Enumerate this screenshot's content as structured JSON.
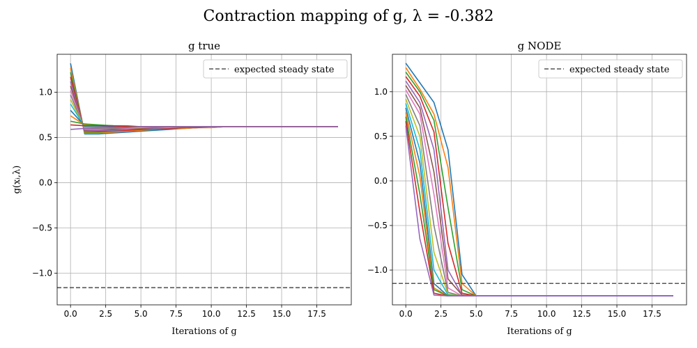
{
  "figure": {
    "suptitle": "Contraction mapping of g, λ = -0.382"
  },
  "chart_data": [
    {
      "type": "line",
      "title": "g true",
      "xlabel": "Iterations of g",
      "ylabel": "g(xᵢ,λ)",
      "xlim": [
        -0.95,
        19.95
      ],
      "ylim": [
        -1.35,
        1.42
      ],
      "xticks": [
        0,
        2.5,
        5,
        7.5,
        10,
        12.5,
        15,
        17.5
      ],
      "xtick_labels": [
        "0.0",
        "2.5",
        "5.0",
        "7.5",
        "10.0",
        "12.5",
        "15.0",
        "17.5"
      ],
      "yticks": [
        -1.0,
        -0.5,
        0.0,
        0.5,
        1.0
      ],
      "ytick_labels": [
        "−1.0",
        "−0.5",
        "0.0",
        "0.5",
        "1.0"
      ],
      "grid": true,
      "legend": {
        "placement": "top-right",
        "entries": [
          "expected steady state"
        ]
      },
      "reference_line": {
        "y": -1.16,
        "style": "dashed",
        "color": "#555555"
      },
      "x": [
        0,
        1,
        2,
        3,
        4,
        5,
        6,
        7,
        8,
        9,
        10,
        11,
        12,
        13,
        14,
        15,
        16,
        17,
        18,
        19
      ],
      "series": [
        {
          "color": "#1f77b4",
          "values": [
            1.32,
            0.54,
            0.54,
            0.55,
            0.56,
            0.57,
            0.58,
            0.59,
            0.6,
            0.61,
            0.61,
            0.62,
            0.62,
            0.62,
            0.62,
            0.62,
            0.62,
            0.62,
            0.62,
            0.62
          ]
        },
        {
          "color": "#ff7f0e",
          "values": [
            1.27,
            0.55,
            0.55,
            0.56,
            0.57,
            0.58,
            0.59,
            0.6,
            0.6,
            0.61,
            0.61,
            0.62,
            0.62,
            0.62,
            0.62,
            0.62,
            0.62,
            0.62,
            0.62,
            0.62
          ]
        },
        {
          "color": "#2ca02c",
          "values": [
            1.22,
            0.56,
            0.56,
            0.57,
            0.58,
            0.59,
            0.59,
            0.6,
            0.61,
            0.61,
            0.62,
            0.62,
            0.62,
            0.62,
            0.62,
            0.62,
            0.62,
            0.62,
            0.62,
            0.62
          ]
        },
        {
          "color": "#d62728",
          "values": [
            1.17,
            0.57,
            0.57,
            0.58,
            0.58,
            0.59,
            0.6,
            0.6,
            0.61,
            0.61,
            0.62,
            0.62,
            0.62,
            0.62,
            0.62,
            0.62,
            0.62,
            0.62,
            0.62,
            0.62
          ]
        },
        {
          "color": "#9467bd",
          "values": [
            1.12,
            0.57,
            0.58,
            0.58,
            0.59,
            0.6,
            0.6,
            0.61,
            0.61,
            0.62,
            0.62,
            0.62,
            0.62,
            0.62,
            0.62,
            0.62,
            0.62,
            0.62,
            0.62,
            0.62
          ]
        },
        {
          "color": "#8c564b",
          "values": [
            1.07,
            0.58,
            0.59,
            0.59,
            0.6,
            0.6,
            0.61,
            0.61,
            0.61,
            0.62,
            0.62,
            0.62,
            0.62,
            0.62,
            0.62,
            0.62,
            0.62,
            0.62,
            0.62,
            0.62
          ]
        },
        {
          "color": "#e377c2",
          "values": [
            1.02,
            0.59,
            0.59,
            0.6,
            0.6,
            0.61,
            0.61,
            0.61,
            0.62,
            0.62,
            0.62,
            0.62,
            0.62,
            0.62,
            0.62,
            0.62,
            0.62,
            0.62,
            0.62,
            0.62
          ]
        },
        {
          "color": "#7f7f7f",
          "values": [
            0.97,
            0.6,
            0.6,
            0.6,
            0.61,
            0.61,
            0.61,
            0.62,
            0.62,
            0.62,
            0.62,
            0.62,
            0.62,
            0.62,
            0.62,
            0.62,
            0.62,
            0.62,
            0.62,
            0.62
          ]
        },
        {
          "color": "#bcbd22",
          "values": [
            0.92,
            0.61,
            0.61,
            0.61,
            0.61,
            0.61,
            0.62,
            0.62,
            0.62,
            0.62,
            0.62,
            0.62,
            0.62,
            0.62,
            0.62,
            0.62,
            0.62,
            0.62,
            0.62,
            0.62
          ]
        },
        {
          "color": "#17becf",
          "values": [
            0.87,
            0.62,
            0.62,
            0.62,
            0.62,
            0.62,
            0.62,
            0.62,
            0.62,
            0.62,
            0.62,
            0.62,
            0.62,
            0.62,
            0.62,
            0.62,
            0.62,
            0.62,
            0.62,
            0.62
          ]
        },
        {
          "color": "#1f77b4",
          "values": [
            0.8,
            0.63,
            0.63,
            0.62,
            0.62,
            0.62,
            0.62,
            0.62,
            0.62,
            0.62,
            0.62,
            0.62,
            0.62,
            0.62,
            0.62,
            0.62,
            0.62,
            0.62,
            0.62,
            0.62
          ]
        },
        {
          "color": "#ff7f0e",
          "values": [
            0.74,
            0.64,
            0.63,
            0.63,
            0.62,
            0.62,
            0.62,
            0.62,
            0.62,
            0.62,
            0.62,
            0.62,
            0.62,
            0.62,
            0.62,
            0.62,
            0.62,
            0.62,
            0.62,
            0.62
          ]
        },
        {
          "color": "#2ca02c",
          "values": [
            0.68,
            0.65,
            0.64,
            0.63,
            0.63,
            0.62,
            0.62,
            0.62,
            0.62,
            0.62,
            0.62,
            0.62,
            0.62,
            0.62,
            0.62,
            0.62,
            0.62,
            0.62,
            0.62,
            0.62
          ]
        },
        {
          "color": "#d62728",
          "values": [
            0.64,
            0.63,
            0.63,
            0.63,
            0.62,
            0.62,
            0.62,
            0.62,
            0.62,
            0.62,
            0.62,
            0.62,
            0.62,
            0.62,
            0.62,
            0.62,
            0.62,
            0.62,
            0.62,
            0.62
          ]
        },
        {
          "color": "#9467bd",
          "values": [
            0.59,
            0.6,
            0.61,
            0.61,
            0.61,
            0.62,
            0.62,
            0.62,
            0.62,
            0.62,
            0.62,
            0.62,
            0.62,
            0.62,
            0.62,
            0.62,
            0.62,
            0.62,
            0.62,
            0.62
          ]
        }
      ]
    },
    {
      "type": "line",
      "title": "g NODE",
      "xlabel": "Iterations of g",
      "ylabel": "",
      "xlim": [
        -0.95,
        19.95
      ],
      "ylim": [
        -1.39,
        1.42
      ],
      "xticks": [
        0,
        2.5,
        5,
        7.5,
        10,
        12.5,
        15,
        17.5
      ],
      "xtick_labels": [
        "0.0",
        "2.5",
        "5.0",
        "7.5",
        "10.0",
        "12.5",
        "15.0",
        "17.5"
      ],
      "yticks": [
        -1.0,
        -0.5,
        0.0,
        0.5,
        1.0
      ],
      "ytick_labels": [
        "−1.0",
        "−0.5",
        "0.0",
        "0.5",
        "1.0"
      ],
      "grid": true,
      "legend": {
        "placement": "top-right",
        "entries": [
          "expected steady state"
        ]
      },
      "reference_line": {
        "y": -1.15,
        "style": "dashed",
        "color": "#555555"
      },
      "x": [
        0,
        1,
        2,
        3,
        4,
        5,
        6,
        7,
        8,
        9,
        10,
        11,
        12,
        13,
        14,
        15,
        16,
        17,
        18,
        19
      ],
      "series": [
        {
          "color": "#1f77b4",
          "values": [
            1.32,
            1.1,
            0.88,
            0.35,
            -1.05,
            -1.29,
            -1.29,
            -1.29,
            -1.29,
            -1.29,
            -1.29,
            -1.29,
            -1.29,
            -1.29,
            -1.29,
            -1.29,
            -1.29,
            -1.29,
            -1.29,
            -1.29
          ]
        },
        {
          "color": "#ff7f0e",
          "values": [
            1.27,
            1.03,
            0.75,
            0.15,
            -1.15,
            -1.29,
            -1.29,
            -1.29,
            -1.29,
            -1.29,
            -1.29,
            -1.29,
            -1.29,
            -1.29,
            -1.29,
            -1.29,
            -1.29,
            -1.29,
            -1.29,
            -1.29
          ]
        },
        {
          "color": "#2ca02c",
          "values": [
            1.22,
            1.0,
            0.68,
            -0.3,
            -1.22,
            -1.29,
            -1.29,
            -1.29,
            -1.29,
            -1.29,
            -1.29,
            -1.29,
            -1.29,
            -1.29,
            -1.29,
            -1.29,
            -1.29,
            -1.29,
            -1.29,
            -1.29
          ]
        },
        {
          "color": "#d62728",
          "values": [
            1.17,
            0.95,
            0.55,
            -0.7,
            -1.26,
            -1.29,
            -1.29,
            -1.29,
            -1.29,
            -1.29,
            -1.29,
            -1.29,
            -1.29,
            -1.29,
            -1.29,
            -1.29,
            -1.29,
            -1.29,
            -1.29,
            -1.29
          ]
        },
        {
          "color": "#9467bd",
          "values": [
            1.12,
            0.88,
            0.35,
            -1.0,
            -1.28,
            -1.29,
            -1.29,
            -1.29,
            -1.29,
            -1.29,
            -1.29,
            -1.29,
            -1.29,
            -1.29,
            -1.29,
            -1.29,
            -1.29,
            -1.29,
            -1.29,
            -1.29
          ]
        },
        {
          "color": "#8c564b",
          "values": [
            1.07,
            0.82,
            0.1,
            -1.1,
            -1.28,
            -1.29,
            -1.29,
            -1.29,
            -1.29,
            -1.29,
            -1.29,
            -1.29,
            -1.29,
            -1.29,
            -1.29,
            -1.29,
            -1.29,
            -1.29,
            -1.29,
            -1.29
          ]
        },
        {
          "color": "#e377c2",
          "values": [
            1.02,
            0.75,
            -0.15,
            -1.2,
            -1.29,
            -1.29,
            -1.29,
            -1.29,
            -1.29,
            -1.29,
            -1.29,
            -1.29,
            -1.29,
            -1.29,
            -1.29,
            -1.29,
            -1.29,
            -1.29,
            -1.29,
            -1.29
          ]
        },
        {
          "color": "#7f7f7f",
          "values": [
            0.97,
            0.62,
            -0.5,
            -1.25,
            -1.29,
            -1.29,
            -1.29,
            -1.29,
            -1.29,
            -1.29,
            -1.29,
            -1.29,
            -1.29,
            -1.29,
            -1.29,
            -1.29,
            -1.29,
            -1.29,
            -1.29,
            -1.29
          ]
        },
        {
          "color": "#bcbd22",
          "values": [
            0.92,
            0.5,
            -0.8,
            -1.27,
            -1.29,
            -1.29,
            -1.29,
            -1.29,
            -1.29,
            -1.29,
            -1.29,
            -1.29,
            -1.29,
            -1.29,
            -1.29,
            -1.29,
            -1.29,
            -1.29,
            -1.29,
            -1.29
          ]
        },
        {
          "color": "#17becf",
          "values": [
            0.87,
            0.35,
            -1.0,
            -1.28,
            -1.29,
            -1.29,
            -1.29,
            -1.29,
            -1.29,
            -1.29,
            -1.29,
            -1.29,
            -1.29,
            -1.29,
            -1.29,
            -1.29,
            -1.29,
            -1.29,
            -1.29,
            -1.29
          ]
        },
        {
          "color": "#1f77b4",
          "values": [
            0.82,
            0.2,
            -1.15,
            -1.29,
            -1.29,
            -1.29,
            -1.29,
            -1.29,
            -1.29,
            -1.29,
            -1.29,
            -1.29,
            -1.29,
            -1.29,
            -1.29,
            -1.29,
            -1.29,
            -1.29,
            -1.29,
            -1.29
          ]
        },
        {
          "color": "#ff7f0e",
          "values": [
            0.77,
            0.05,
            -1.2,
            -1.29,
            -1.29,
            -1.29,
            -1.29,
            -1.29,
            -1.29,
            -1.29,
            -1.29,
            -1.29,
            -1.29,
            -1.29,
            -1.29,
            -1.29,
            -1.29,
            -1.29,
            -1.29,
            -1.29
          ]
        },
        {
          "color": "#2ca02c",
          "values": [
            0.72,
            -0.15,
            -1.22,
            -1.29,
            -1.29,
            -1.29,
            -1.29,
            -1.29,
            -1.29,
            -1.29,
            -1.29,
            -1.29,
            -1.29,
            -1.29,
            -1.29,
            -1.29,
            -1.29,
            -1.29,
            -1.29,
            -1.29
          ]
        },
        {
          "color": "#d62728",
          "values": [
            0.67,
            -0.35,
            -1.26,
            -1.29,
            -1.29,
            -1.29,
            -1.29,
            -1.29,
            -1.29,
            -1.29,
            -1.29,
            -1.29,
            -1.29,
            -1.29,
            -1.29,
            -1.29,
            -1.29,
            -1.29,
            -1.29,
            -1.29
          ]
        },
        {
          "color": "#9467bd",
          "values": [
            0.62,
            -0.65,
            -1.28,
            -1.29,
            -1.29,
            -1.29,
            -1.29,
            -1.29,
            -1.29,
            -1.29,
            -1.29,
            -1.29,
            -1.29,
            -1.29,
            -1.29,
            -1.29,
            -1.29,
            -1.29,
            -1.29,
            -1.29
          ]
        }
      ]
    }
  ]
}
